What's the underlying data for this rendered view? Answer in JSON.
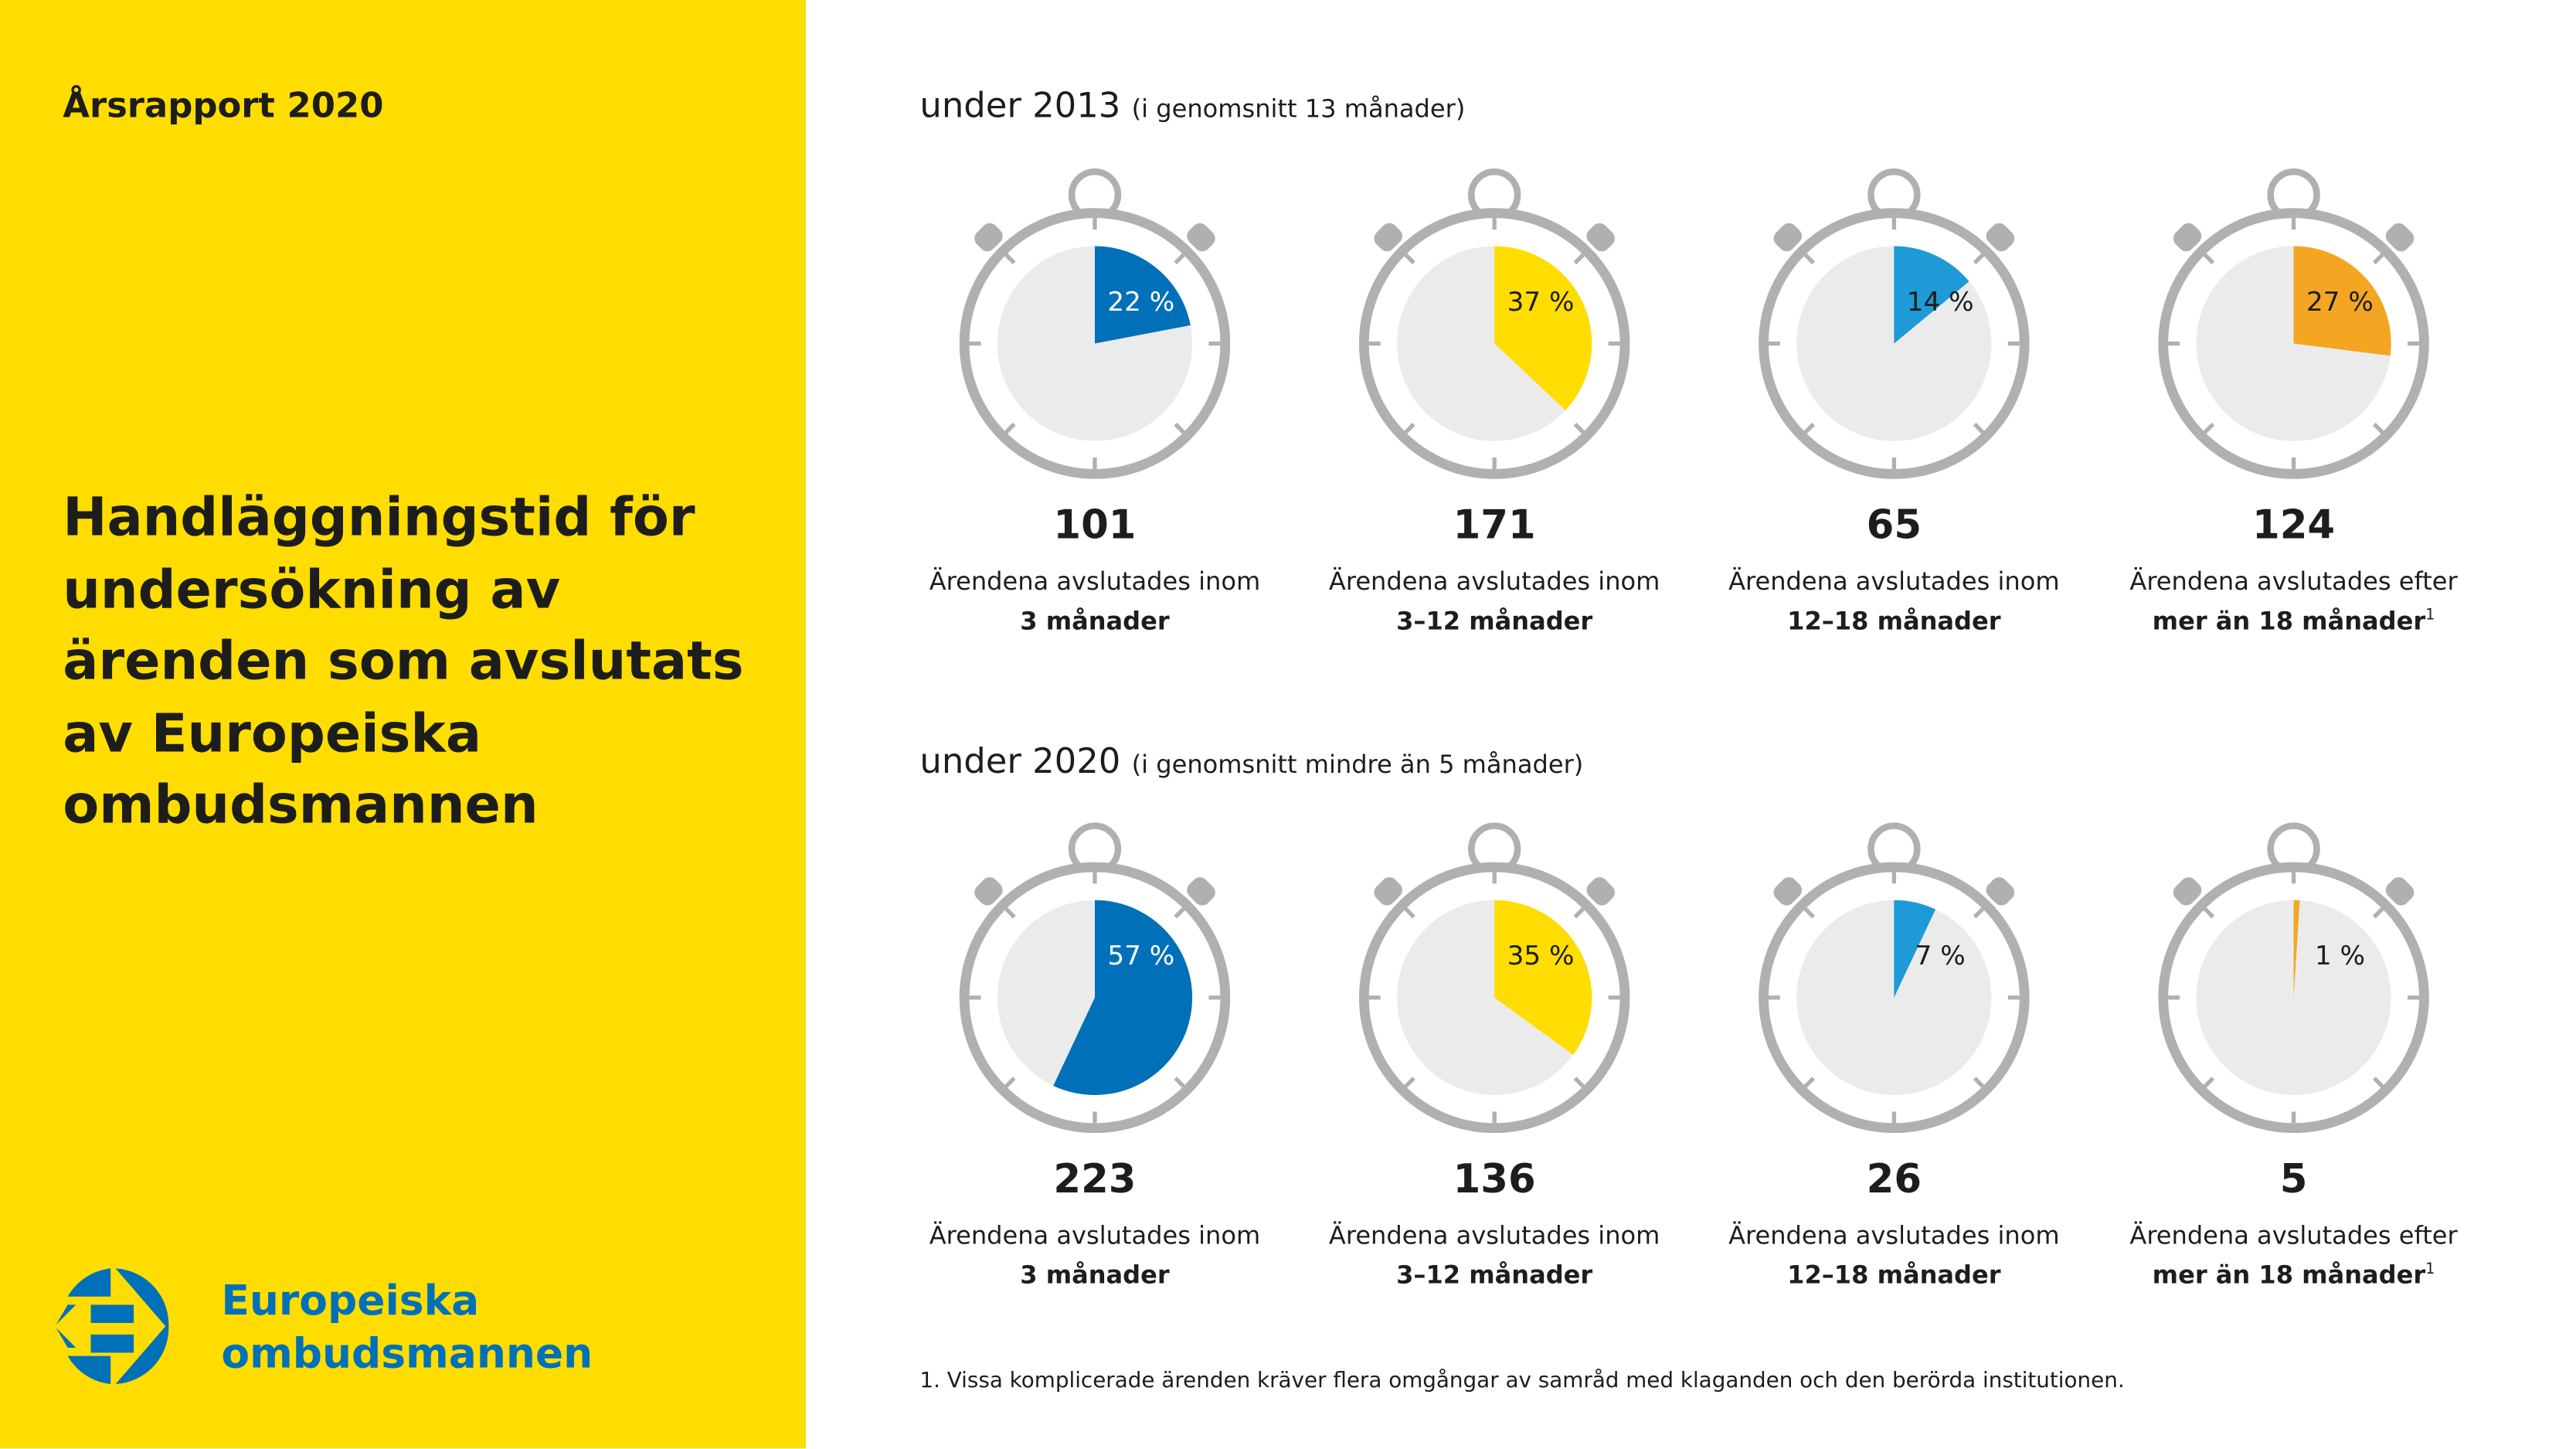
{
  "sidebar": {
    "report": "Årsrapport 2020",
    "title": "Handläggningstid för undersökning av ärenden som avslutats av Europeiska ombudsmannen",
    "logo_line1": "Europeiska",
    "logo_line2": "ombudsmannen"
  },
  "colors": {
    "sidebar": "#ffdd00",
    "blue": "#0070b8",
    "yellow": "#ffdd00",
    "light_blue": "#1e9ad6",
    "orange": "#f4a623",
    "frame": "#b0b0b0",
    "dial": "#ebebeb"
  },
  "chart_data": [
    {
      "type": "pie",
      "heading": "under 2013",
      "subheading": "(i genomsnitt 13 månader)",
      "items": [
        {
          "count": "101",
          "percent": 22,
          "percent_label": "22 %",
          "label": "Ärendena avslutades inom",
          "label_bold": "3 månader",
          "note": "",
          "color": "#0070b8",
          "text_color": "#ffffff"
        },
        {
          "count": "171",
          "percent": 37,
          "percent_label": "37 %",
          "label": "Ärendena avslutades inom",
          "label_bold": "3–12 månader",
          "note": "",
          "color": "#ffdd00",
          "text_color": "#1d1d1b"
        },
        {
          "count": "65",
          "percent": 14,
          "percent_label": "14 %",
          "label": "Ärendena avslutades inom",
          "label_bold": "12–18 månader",
          "note": "",
          "color": "#1e9ad6",
          "text_color": "#1d1d1b"
        },
        {
          "count": "124",
          "percent": 27,
          "percent_label": "27 %",
          "label": "Ärendena avslutades efter",
          "label_bold": "mer än 18 månader",
          "note": "1",
          "color": "#f4a623",
          "text_color": "#1d1d1b"
        }
      ]
    },
    {
      "type": "pie",
      "heading": "under 2020",
      "subheading": "(i genomsnitt mindre än 5 månader)",
      "items": [
        {
          "count": "223",
          "percent": 57,
          "percent_label": "57 %",
          "label": "Ärendena avslutades inom",
          "label_bold": "3 månader",
          "note": "",
          "color": "#0070b8",
          "text_color": "#ffffff"
        },
        {
          "count": "136",
          "percent": 35,
          "percent_label": "35 %",
          "label": "Ärendena avslutades inom",
          "label_bold": "3–12 månader",
          "note": "",
          "color": "#ffdd00",
          "text_color": "#1d1d1b"
        },
        {
          "count": "26",
          "percent": 7,
          "percent_label": "7 %",
          "label": "Ärendena avslutades inom",
          "label_bold": "12–18 månader",
          "note": "",
          "color": "#1e9ad6",
          "text_color": "#1d1d1b"
        },
        {
          "count": "5",
          "percent": 1,
          "percent_label": "1 %",
          "label": "Ärendena avslutades efter",
          "label_bold": "mer än 18 månader",
          "note": "1",
          "color": "#f4a623",
          "text_color": "#1d1d1b"
        }
      ]
    }
  ],
  "footnote": "1. Vissa komplicerade ärenden kräver flera omgångar av samråd med klaganden och den berörda institutionen."
}
